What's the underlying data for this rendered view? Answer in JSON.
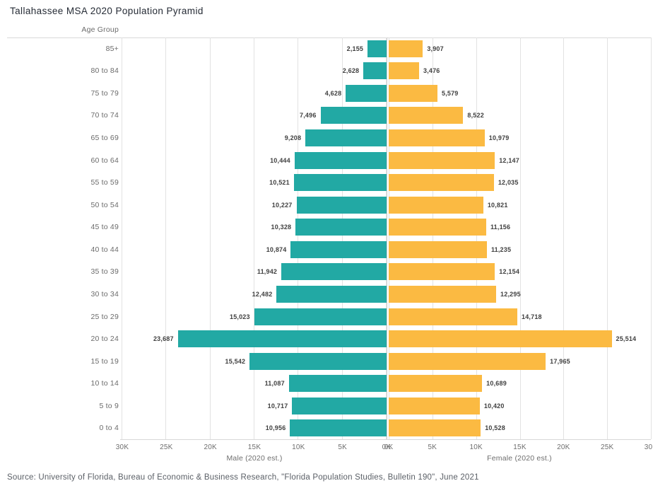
{
  "title": "Tallahassee MSA 2020 Population Pyramid",
  "source_note": "Source: University of Florida, Bureau of Economic & Business Research, \"Florida Population Studies, Bulletin 190\", June 2021",
  "colors": {
    "male_bar": "#22A9A4",
    "female_bar": "#FBBA42",
    "gridline": "#e2e2e2",
    "axis_rule": "#d8d8d8"
  },
  "axis": {
    "row_header": "Age Group",
    "male_axis_label": "Male (2020 est.)",
    "female_axis_label": "Female (2020 est.)",
    "male_ticks": [
      "30K",
      "25K",
      "20K",
      "15K",
      "10K",
      "5K",
      "0K"
    ],
    "female_ticks": [
      "0K",
      "5K",
      "10K",
      "15K",
      "20K",
      "25K",
      "30K"
    ]
  },
  "chart_data": {
    "type": "bar",
    "subtype": "population-pyramid",
    "title": "Tallahassee MSA 2020 Population Pyramid",
    "categories_axis_label": "Age Group",
    "categories": [
      "85+",
      "80 to 84",
      "75 to 79",
      "70 to 74",
      "65 to 69",
      "60 to 64",
      "55 to 59",
      "50 to 54",
      "45 to 49",
      "40 to 44",
      "35 to 39",
      "30 to 34",
      "25 to 29",
      "20 to 24",
      "15 to 19",
      "10 to 14",
      "5 to 9",
      "0 to 4"
    ],
    "xlim": [
      0,
      30000
    ],
    "grid": true,
    "series": [
      {
        "name": "Male (2020 est.)",
        "direction": "left",
        "values": [
          2155,
          2628,
          4628,
          7496,
          9208,
          10444,
          10521,
          10227,
          10328,
          10874,
          11942,
          12482,
          15023,
          23687,
          15542,
          11087,
          10717,
          10956
        ],
        "labels": [
          "2,155",
          "2,628",
          "4,628",
          "7,496",
          "9,208",
          "10,444",
          "10,521",
          "10,227",
          "10,328",
          "10,874",
          "11,942",
          "12,482",
          "15,023",
          "23,687",
          "15,542",
          "11,087",
          "10,717",
          "10,956"
        ]
      },
      {
        "name": "Female (2020 est.)",
        "direction": "right",
        "values": [
          3907,
          3476,
          5579,
          8522,
          10979,
          12147,
          12035,
          10821,
          11156,
          11235,
          12154,
          12295,
          14718,
          25514,
          17965,
          10689,
          10420,
          10528
        ],
        "labels": [
          "3,907",
          "3,476",
          "5,579",
          "8,522",
          "10,979",
          "12,147",
          "12,035",
          "10,821",
          "11,156",
          "11,235",
          "12,154",
          "12,295",
          "14,718",
          "25,514",
          "17,965",
          "10,689",
          "10,420",
          "10,528"
        ]
      }
    ]
  }
}
